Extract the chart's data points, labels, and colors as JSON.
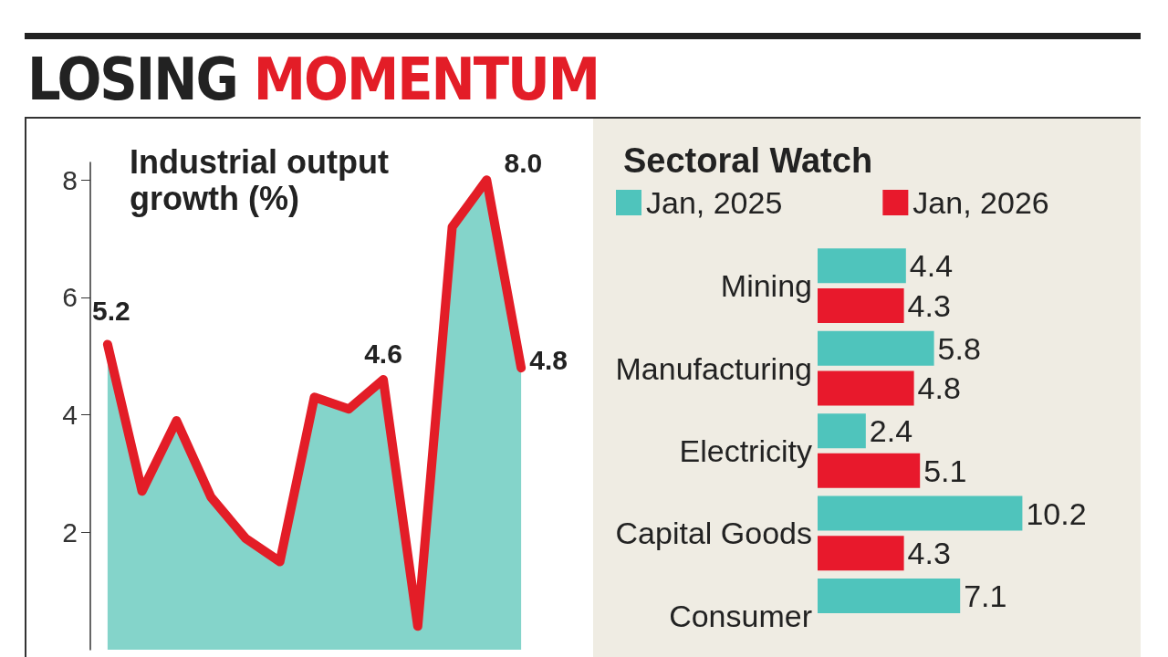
{
  "chart_data": [
    {
      "type": "area",
      "title": "LOSING MOMENTUM",
      "subtitle": "Industrial output growth (%)",
      "categories": [
        null,
        null,
        null,
        null,
        null,
        null,
        null,
        null,
        null,
        null,
        null,
        null,
        null
      ],
      "series": [
        {
          "type": "area",
          "color": "#84d4ca",
          "values": [
            5.2,
            2.7,
            3.9,
            2.6,
            1.9,
            1.5,
            4.3,
            4.1,
            4.6,
            0.4,
            7.2,
            8.0,
            4.8
          ]
        },
        {
          "type": "line",
          "color": "#e31d27",
          "values": [
            5.2,
            2.7,
            3.9,
            2.6,
            1.9,
            1.5,
            4.3,
            4.1,
            4.6,
            0.4,
            7.2,
            8.0,
            4.8
          ],
          "value_labels": [
            "5.2",
            null,
            null,
            null,
            null,
            null,
            null,
            null,
            "4.6",
            null,
            null,
            "8.0",
            "4.8"
          ]
        }
      ],
      "ylim": [
        0,
        8.3
      ],
      "yticks": [
        2,
        4,
        6,
        8
      ],
      "grid": false,
      "legend": false,
      "marker": "none",
      "line_style": "solid"
    },
    {
      "type": "bar",
      "orientation": "horizontal",
      "title": "Sectoral Watch",
      "categories": [
        "Mining",
        "Manufacturing",
        "Electricity",
        "Capital Goods",
        "Consumer"
      ],
      "series": [
        {
          "name": "Jan, 2025",
          "color": "#4fc4bc",
          "values": [
            4.4,
            5.8,
            2.4,
            10.2,
            7.1
          ]
        },
        {
          "name": "Jan, 2026",
          "color": "#e8192c",
          "values": [
            4.3,
            4.8,
            5.1,
            4.3,
            null
          ]
        }
      ],
      "data_labels": true,
      "legend": "top left",
      "grid": false
    }
  ]
}
